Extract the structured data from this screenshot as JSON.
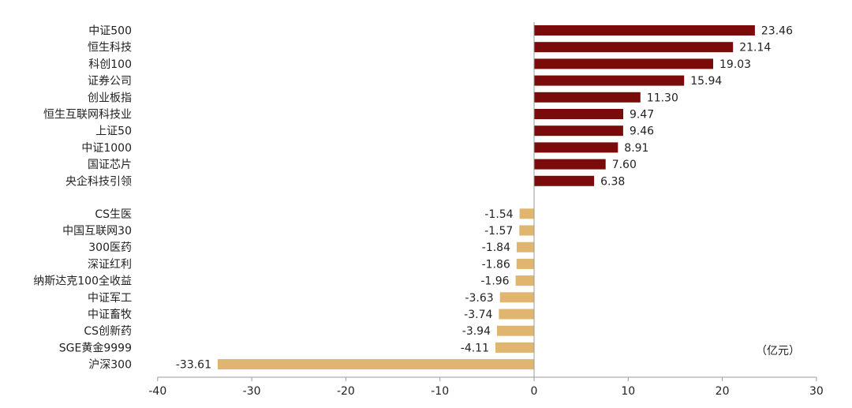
{
  "chart_data": {
    "type": "bar",
    "orientation": "horizontal",
    "unit": "（亿元）",
    "xlim": [
      -40,
      30
    ],
    "xticks": [
      -40,
      -30,
      -20,
      -10,
      0,
      10,
      20,
      30
    ],
    "grid": false,
    "colors": {
      "positive": "#7b0a0a",
      "negative": "#e0b56f"
    },
    "categories": [
      "中证500",
      "恒生科技",
      "科创100",
      "证券公司",
      "创业板指",
      "恒生互联网科技业",
      "上证50",
      "中证1000",
      "国证芯片",
      "央企科技引领",
      "CS生医",
      "中国互联网30",
      "300医药",
      "深证红利",
      "纳斯达克100全收益",
      "中证军工",
      "中证畜牧",
      "CS创新药",
      "SGE黄金9999",
      "沪深300"
    ],
    "values": [
      23.46,
      21.14,
      19.03,
      15.94,
      11.3,
      9.47,
      9.46,
      8.91,
      7.6,
      6.38,
      -1.54,
      -1.57,
      -1.84,
      -1.86,
      -1.96,
      -3.63,
      -3.74,
      -3.94,
      -4.11,
      -33.61
    ],
    "value_labels": [
      "23.46",
      "21.14",
      "19.03",
      "15.94",
      "11.30",
      "9.47",
      "9.46",
      "8.91",
      "7.60",
      "6.38",
      "-1.54",
      "-1.57",
      "-1.84",
      "-1.86",
      "-1.96",
      "-3.63",
      "-3.74",
      "-3.94",
      "-4.11",
      "-33.61"
    ]
  }
}
